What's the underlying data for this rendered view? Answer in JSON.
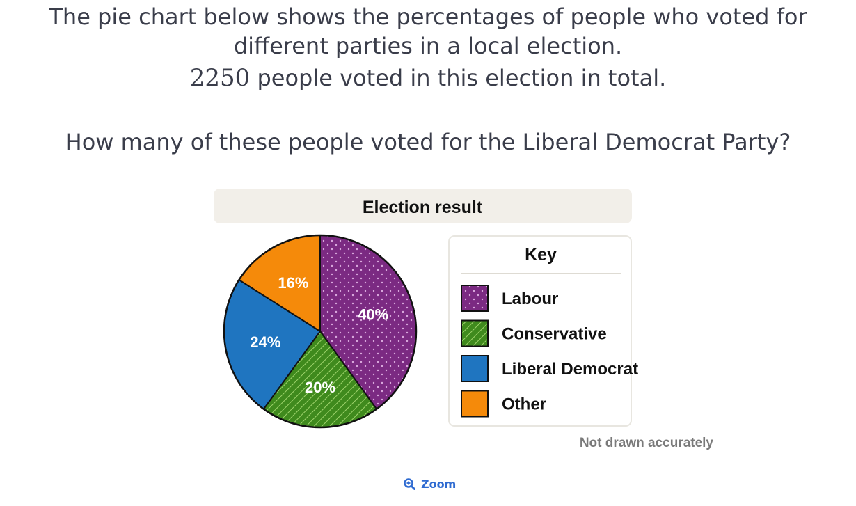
{
  "question": {
    "line1": "The pie chart below shows the percentages of people who voted for",
    "line2": "different parties in a local election.",
    "total_number": "2250",
    "line3_rest": " people voted in this election in total.",
    "ask": "How many of these people voted for the Liberal Democrat Party?"
  },
  "zoom": {
    "label": "Zoom",
    "icon": "zoom-in-icon"
  },
  "chart_data": {
    "type": "pie",
    "title": "Election result",
    "key_title": "Key",
    "note": "Not drawn accurately",
    "categories": [
      "Labour",
      "Conservative",
      "Liberal Democrat",
      "Other"
    ],
    "values": [
      40,
      20,
      24,
      16
    ],
    "value_labels": [
      "40%",
      "20%",
      "24%",
      "16%"
    ],
    "colors": [
      "#7b2a82",
      "#3f8a1d",
      "#1f75c0",
      "#f58a0a"
    ],
    "patterns": [
      "dots",
      "diagonal-stripes",
      "solid",
      "solid"
    ],
    "legend_position": "right"
  }
}
